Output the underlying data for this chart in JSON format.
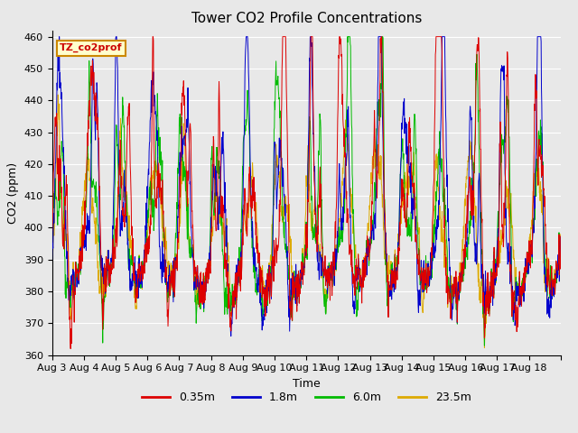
{
  "title": "Tower CO2 Profile Concentrations",
  "xlabel": "Time",
  "ylabel": "CO2 (ppm)",
  "ylim": [
    360,
    462
  ],
  "yticks": [
    360,
    370,
    380,
    390,
    400,
    410,
    420,
    430,
    440,
    450,
    460
  ],
  "xticklabels": [
    "Aug 3",
    "Aug 4",
    "Aug 5",
    "Aug 6",
    "Aug 7",
    "Aug 8",
    "Aug 9",
    "Aug 10",
    "Aug 11",
    "Aug 12",
    "Aug 13",
    "Aug 14",
    "Aug 15",
    "Aug 16",
    "Aug 17",
    "Aug 18"
  ],
  "legend_labels": [
    "0.35m",
    "1.8m",
    "6.0m",
    "23.5m"
  ],
  "line_colors": [
    "#dd0000",
    "#0000cc",
    "#00bb00",
    "#ddaa00"
  ],
  "annotation_text": "TZ_co2prof",
  "annotation_bg": "#ffffcc",
  "annotation_border": "#cc8800",
  "plot_bg": "#e8e8e8",
  "grid_color": "#ffffff",
  "title_fontsize": 11,
  "label_fontsize": 9,
  "tick_fontsize": 8,
  "n_days": 16,
  "pts_per_day": 96,
  "figsize": [
    6.4,
    4.8
  ],
  "dpi": 100
}
